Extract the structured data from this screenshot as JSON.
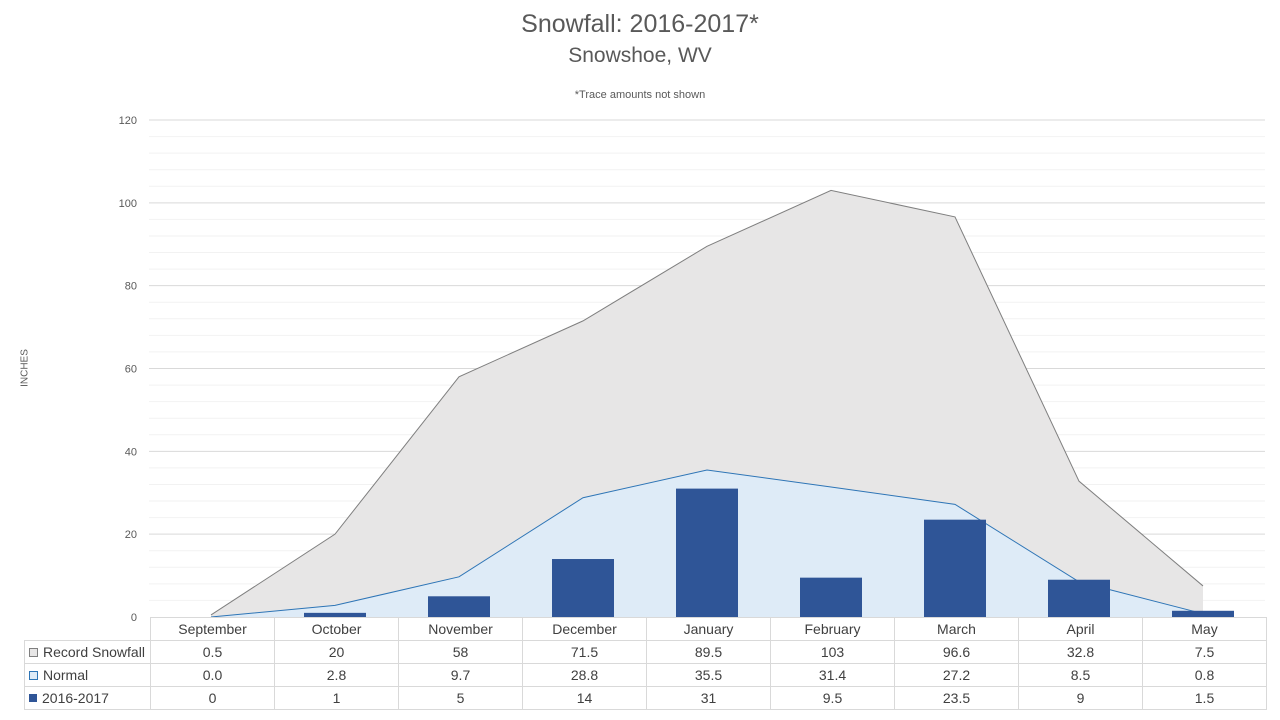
{
  "chart_data": {
    "type": "area",
    "title": "Snowfall: 2016-2017*",
    "subtitle": "Snowshoe, WV",
    "note": "*Trace amounts not shown",
    "ylabel": "INCHES",
    "xlabel": "",
    "ylim": [
      0,
      120
    ],
    "yticks": [
      0,
      20,
      40,
      60,
      80,
      100,
      120
    ],
    "grid": true,
    "legend": "data-table",
    "categories": [
      "September",
      "October",
      "November",
      "December",
      "January",
      "February",
      "March",
      "April",
      "May"
    ],
    "series": [
      {
        "name": "Record Snowfall",
        "type": "area",
        "color": "#e7e6e6",
        "line_color": "#7f7f7f",
        "values": [
          0.5,
          20,
          58,
          71.5,
          89.5,
          103,
          96.6,
          32.8,
          7.5
        ],
        "labels": [
          "0.5",
          "20",
          "58",
          "71.5",
          "89.5",
          "103",
          "96.6",
          "32.8",
          "7.5"
        ]
      },
      {
        "name": "Normal",
        "type": "area",
        "color": "#deebf7",
        "line_color": "#2e75b6",
        "values": [
          0.0,
          2.8,
          9.7,
          28.8,
          35.5,
          31.4,
          27.2,
          8.5,
          0.8
        ],
        "labels": [
          "0.0",
          "2.8",
          "9.7",
          "28.8",
          "35.5",
          "31.4",
          "27.2",
          "8.5",
          "0.8"
        ]
      },
      {
        "name": "2016-2017",
        "type": "bar",
        "color": "#2f5597",
        "values": [
          0,
          1,
          5,
          14,
          31,
          9.5,
          23.5,
          9,
          1.5
        ],
        "labels": [
          "0",
          "1",
          "5",
          "14",
          "31",
          "9.5",
          "23.5",
          "9",
          "1.5"
        ]
      }
    ]
  }
}
